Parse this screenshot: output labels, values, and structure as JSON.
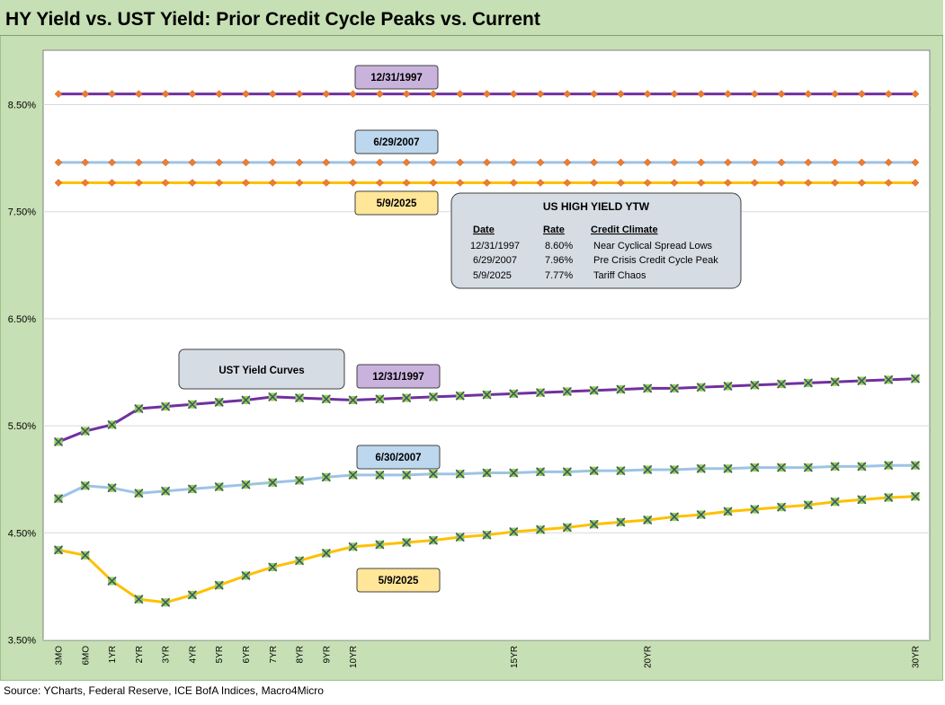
{
  "title": "HY Yield vs. UST Yield: Prior Credit Cycle Peaks vs. Current",
  "source": "Source: YCharts, Federal Reserve, ICE BofA Indices, Macro4Micro",
  "chart_data": {
    "type": "line",
    "title": "HY Yield vs. UST Yield: Prior Credit Cycle Peaks vs. Current",
    "xlabel": "",
    "ylabel": "",
    "ylim": [
      3.5,
      8.5
    ],
    "y_ticks": [
      "3.50%",
      "4.50%",
      "5.50%",
      "6.50%",
      "7.50%",
      "8.50%"
    ],
    "y_tick_values": [
      3.5,
      4.5,
      5.5,
      6.5,
      7.5,
      8.5
    ],
    "grid": "horizontal",
    "x_tick_labels": [
      "3MO",
      "6MO",
      "1YR",
      "2YR",
      "3YR",
      "4YR",
      "5YR",
      "6YR",
      "7YR",
      "8YR",
      "9YR",
      "10YR",
      "",
      "",
      "",
      "",
      "",
      "15YR",
      "",
      "",
      "",
      "",
      "20YR",
      "",
      "",
      "",
      "",
      "",
      "",
      "",
      "",
      "",
      "30YR"
    ],
    "hy_series": [
      {
        "label": "12/31/1997",
        "value": 8.6,
        "color": "#7030a0",
        "label_bg": "#c9b3dd"
      },
      {
        "label": "6/29/2007",
        "value": 7.96,
        "color": "#9dc3e6",
        "label_bg": "#bdd7ee"
      },
      {
        "label": "5/9/2025",
        "value": 7.77,
        "color": "#ffc000",
        "label_bg": "#ffe699"
      }
    ],
    "ust_series": [
      {
        "label": "12/31/1997",
        "color": "#7030a0",
        "label_bg": "#c9b3dd",
        "values": [
          5.35,
          5.45,
          5.51,
          5.66,
          5.68,
          5.7,
          5.72,
          5.74,
          5.77,
          5.76,
          5.75,
          5.74,
          5.75,
          5.76,
          5.77,
          5.78,
          5.79,
          5.8,
          5.81,
          5.82,
          5.83,
          5.84,
          5.85,
          5.85,
          5.86,
          5.87,
          5.88,
          5.89,
          5.9,
          5.91,
          5.92,
          5.93,
          5.94
        ]
      },
      {
        "label": "6/30/2007",
        "color": "#9dc3e6",
        "label_bg": "#bdd7ee",
        "values": [
          4.82,
          4.94,
          4.92,
          4.87,
          4.89,
          4.91,
          4.93,
          4.95,
          4.97,
          4.99,
          5.02,
          5.04,
          5.04,
          5.04,
          5.05,
          5.05,
          5.06,
          5.06,
          5.07,
          5.07,
          5.08,
          5.08,
          5.09,
          5.09,
          5.1,
          5.1,
          5.11,
          5.11,
          5.11,
          5.12,
          5.12,
          5.13,
          5.13
        ]
      },
      {
        "label": "5/9/2025",
        "color": "#ffc000",
        "label_bg": "#ffe699",
        "values": [
          4.34,
          4.29,
          4.05,
          3.88,
          3.85,
          3.92,
          4.01,
          4.1,
          4.18,
          4.24,
          4.31,
          4.37,
          4.39,
          4.41,
          4.43,
          4.46,
          4.48,
          4.51,
          4.53,
          4.55,
          4.58,
          4.6,
          4.62,
          4.65,
          4.67,
          4.7,
          4.72,
          4.74,
          4.76,
          4.79,
          4.81,
          4.83,
          4.84
        ]
      }
    ],
    "ust_box_label": "UST  Yield Curves",
    "table": {
      "title": "US HIGH YIELD YTW",
      "headers": [
        "Date",
        "Rate",
        "Credit Climate"
      ],
      "rows": [
        [
          "12/31/1997",
          "8.60%",
          "Near Cyclical Spread Lows"
        ],
        [
          "6/29/2007",
          "7.96%",
          "Pre Crisis Credit Cycle Peak"
        ],
        [
          "5/9/2025",
          "7.77%",
          "Tariff Chaos"
        ]
      ]
    }
  }
}
